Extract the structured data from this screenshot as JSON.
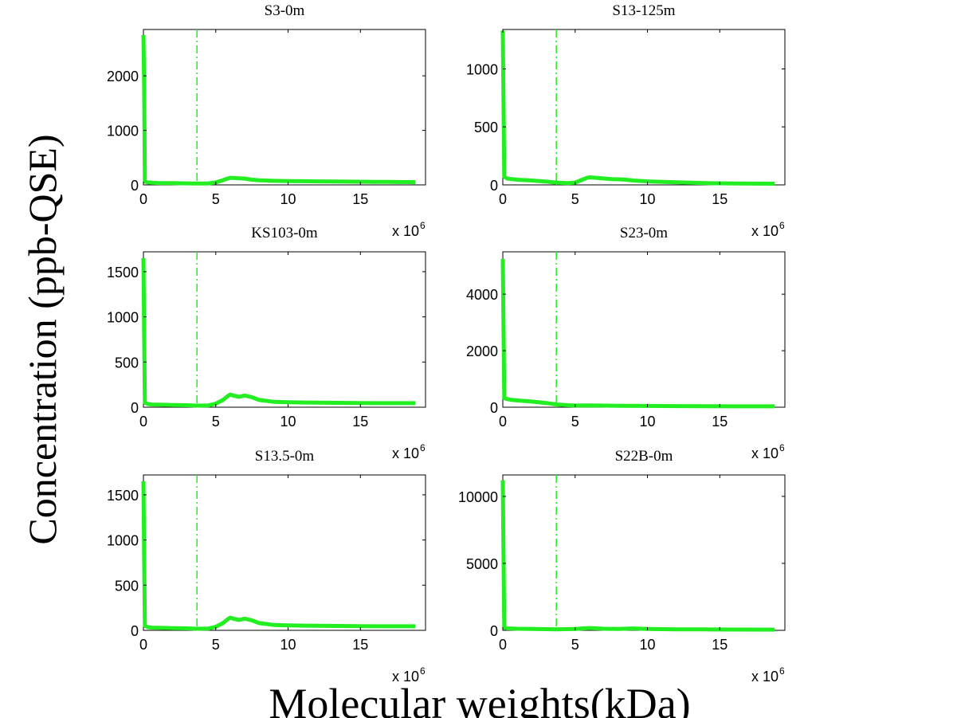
{
  "figure": {
    "ylabel": "Concentration (ppb-QSE)",
    "xlabel": "Molecular weights(kDa)",
    "line_color": "#22ee22"
  },
  "chart_data": [
    {
      "type": "line",
      "title": "S3-0m",
      "xlim": [
        0,
        19.5
      ],
      "ylim": [
        0,
        2850
      ],
      "xticks": [
        0,
        5,
        10,
        15
      ],
      "yticks": [
        0,
        1000,
        2000
      ],
      "x_multiplier_label": "x 10",
      "x_multiplier_exp": "6",
      "vline_x": 3.7,
      "series": [
        {
          "x": [
            0,
            0.05,
            0.1,
            0.3,
            0.6,
            1,
            2,
            3,
            3.7,
            4.5,
            5,
            5.5,
            5.8,
            6,
            6.3,
            6.6,
            7,
            7.5,
            8,
            9,
            10,
            12,
            14,
            16,
            17,
            18.8
          ],
          "y": [
            2750,
            1800,
            60,
            45,
            40,
            35,
            32,
            28,
            25,
            28,
            45,
            85,
            115,
            130,
            125,
            120,
            115,
            95,
            85,
            75,
            70,
            65,
            60,
            55,
            55,
            50
          ]
        }
      ]
    },
    {
      "type": "line",
      "title": "S13-125m",
      "xlim": [
        0,
        19.5
      ],
      "ylim": [
        0,
        1340
      ],
      "xticks": [
        0,
        5,
        10,
        15
      ],
      "yticks": [
        0,
        500,
        1000
      ],
      "x_multiplier_label": "x 10",
      "x_multiplier_exp": "6",
      "vline_x": 3.7,
      "series": [
        {
          "x": [
            0,
            0.05,
            0.1,
            0.3,
            0.6,
            1,
            2,
            3,
            3.7,
            4.5,
            5,
            5.5,
            5.8,
            6,
            6.5,
            7,
            7.5,
            8,
            8.5,
            9,
            10,
            12,
            14,
            16,
            18.8
          ],
          "y": [
            1330,
            700,
            70,
            55,
            50,
            45,
            38,
            28,
            20,
            15,
            20,
            45,
            60,
            65,
            60,
            55,
            50,
            48,
            45,
            38,
            30,
            22,
            15,
            12,
            10
          ]
        }
      ]
    },
    {
      "type": "line",
      "title": "KS103-0m",
      "xlim": [
        0,
        19.5
      ],
      "ylim": [
        0,
        1720
      ],
      "xticks": [
        0,
        5,
        10,
        15
      ],
      "yticks": [
        0,
        500,
        1000,
        1500
      ],
      "x_multiplier_label": "x 10",
      "x_multiplier_exp": "6",
      "vline_x": 3.7,
      "series": [
        {
          "x": [
            0,
            0.05,
            0.1,
            0.3,
            0.6,
            1,
            2,
            3,
            3.7,
            4.5,
            5,
            5.5,
            5.8,
            6,
            6.3,
            6.6,
            7,
            7.5,
            8,
            9,
            10,
            12,
            14,
            16,
            18.8
          ],
          "y": [
            1650,
            800,
            50,
            35,
            30,
            28,
            25,
            22,
            18,
            20,
            40,
            80,
            120,
            140,
            125,
            115,
            130,
            110,
            80,
            60,
            55,
            50,
            48,
            45,
            45
          ]
        }
      ]
    },
    {
      "type": "line",
      "title": "S23-0m",
      "xlim": [
        0,
        19.5
      ],
      "ylim": [
        0,
        5500
      ],
      "xticks": [
        0,
        5,
        10,
        15
      ],
      "yticks": [
        0,
        2000,
        4000
      ],
      "x_multiplier_label": "x 10",
      "x_multiplier_exp": "6",
      "vline_x": 3.7,
      "series": [
        {
          "x": [
            0,
            0.05,
            0.1,
            0.3,
            0.6,
            1,
            2,
            3,
            3.7,
            4.5,
            5,
            6,
            8,
            10,
            12,
            14,
            16,
            18.8
          ],
          "y": [
            5250,
            2800,
            320,
            290,
            260,
            240,
            200,
            150,
            100,
            70,
            60,
            65,
            50,
            45,
            40,
            35,
            30,
            30
          ]
        }
      ]
    },
    {
      "type": "line",
      "title": "S13.5-0m",
      "xlim": [
        0,
        19.5
      ],
      "ylim": [
        0,
        1720
      ],
      "xticks": [
        0,
        5,
        10,
        15
      ],
      "yticks": [
        0,
        500,
        1000,
        1500
      ],
      "x_multiplier_label": "x 10",
      "x_multiplier_exp": "6",
      "vline_x": 3.7,
      "series": [
        {
          "x": [
            0,
            0.05,
            0.1,
            0.3,
            0.6,
            1,
            2,
            3,
            3.7,
            4.5,
            5,
            5.5,
            5.8,
            6,
            6.3,
            6.6,
            7,
            7.5,
            8,
            9,
            10,
            12,
            14,
            16,
            18.8
          ],
          "y": [
            1650,
            800,
            50,
            35,
            30,
            28,
            25,
            22,
            18,
            20,
            40,
            80,
            120,
            140,
            125,
            115,
            130,
            110,
            80,
            60,
            55,
            50,
            48,
            45,
            45
          ]
        }
      ]
    },
    {
      "type": "line",
      "title": "S22B-0m",
      "xlim": [
        0,
        19.5
      ],
      "ylim": [
        0,
        11600
      ],
      "xticks": [
        0,
        5,
        10,
        15
      ],
      "yticks": [
        0,
        5000,
        10000
      ],
      "x_multiplier_label": "x 10",
      "x_multiplier_exp": "6",
      "vline_x": 3.7,
      "series": [
        {
          "x": [
            0,
            0.05,
            0.1,
            0.3,
            1,
            2,
            3,
            3.7,
            5,
            6,
            7,
            8,
            9,
            10,
            12,
            14,
            16,
            18.8
          ],
          "y": [
            11200,
            5500,
            200,
            150,
            120,
            100,
            90,
            80,
            100,
            170,
            120,
            100,
            140,
            100,
            80,
            70,
            60,
            55
          ]
        }
      ]
    }
  ]
}
